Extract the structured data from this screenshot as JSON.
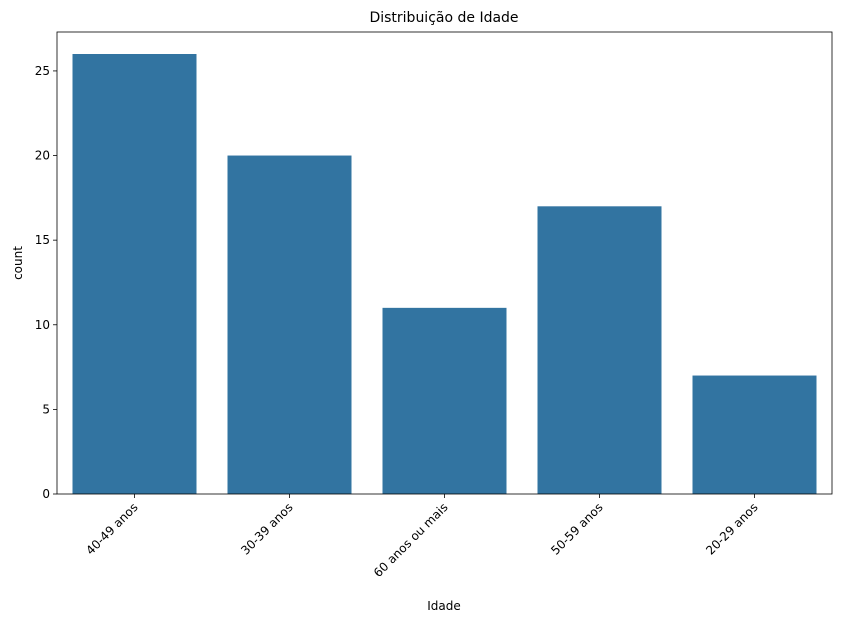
{
  "chart_data": {
    "type": "bar",
    "title": "Distribuição de Idade",
    "xlabel": "Idade",
    "ylabel": "count",
    "categories": [
      "40-49 anos",
      "30-39 anos",
      "60 anos ou mais",
      "50-59 anos",
      "20-29 anos"
    ],
    "values": [
      26,
      20,
      11,
      17,
      7
    ],
    "ylim": [
      0,
      27.3
    ],
    "yticks": [
      0,
      5,
      10,
      15,
      20,
      25
    ],
    "bar_color": "#3274a1",
    "grid": false,
    "legend": "none"
  }
}
